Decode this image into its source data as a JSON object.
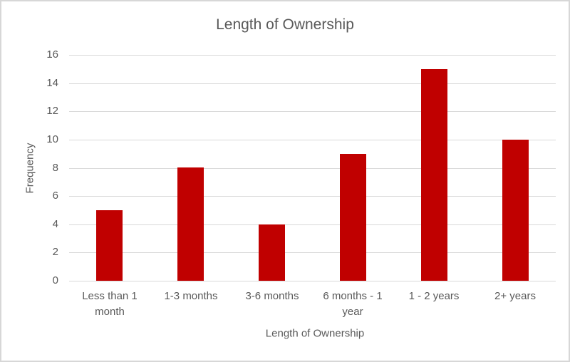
{
  "chart_data": {
    "type": "bar",
    "title": "Length of Ownership",
    "xlabel": "Length of Ownership",
    "ylabel": "Frequency",
    "categories": [
      "Less than 1 month",
      "1-3 months",
      "3-6 months",
      "6 months - 1 year",
      "1 - 2 years",
      "2+ years"
    ],
    "values": [
      5,
      8,
      4,
      9,
      15,
      10
    ],
    "ylim": [
      0,
      16
    ],
    "yticks": [
      0,
      2,
      4,
      6,
      8,
      10,
      12,
      14,
      16
    ],
    "grid": "horizontal",
    "legend": "none",
    "bar_color": "#c00000",
    "text_color": "#595959",
    "gridline_color": "#d9d9d9",
    "border_color": "#d7d7d7",
    "background_color": "#ffffff"
  }
}
